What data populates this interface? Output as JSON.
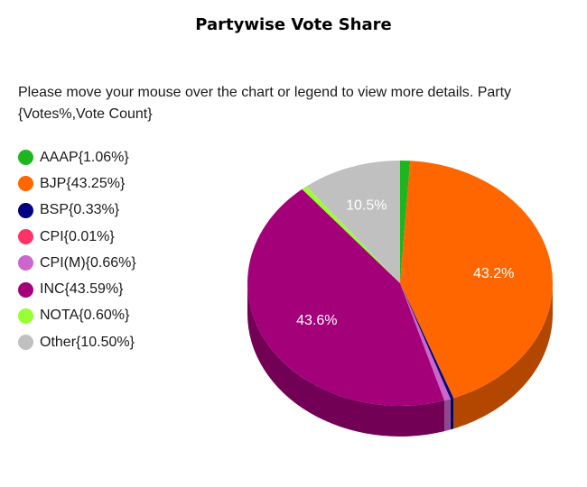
{
  "title": "Partywise Vote Share",
  "instructions": "Please move your mouse over the chart or legend to view more details. Party {Votes%,Vote Count}",
  "chart_data": {
    "type": "pie",
    "title": "Partywise Vote Share",
    "legend_position": "left",
    "slices": [
      {
        "name": "AAAP",
        "value": 1.06,
        "color": "#1fb51f",
        "legend": "AAAP{1.06%}",
        "label": ""
      },
      {
        "name": "BJP",
        "value": 43.25,
        "color": "#ff6600",
        "legend": "BJP{43.25%}",
        "label": "43.2%"
      },
      {
        "name": "BSP",
        "value": 0.33,
        "color": "#000080",
        "legend": "BSP{0.33%}",
        "label": ""
      },
      {
        "name": "CPI",
        "value": 0.01,
        "color": "#ff3366",
        "legend": "CPI{0.01%}",
        "label": ""
      },
      {
        "name": "CPI(M)",
        "value": 0.66,
        "color": "#cc66cc",
        "legend": "CPI(M){0.66%}",
        "label": ""
      },
      {
        "name": "INC",
        "value": 43.59,
        "color": "#a3007a",
        "legend": "INC{43.59%}",
        "label": "43.6%"
      },
      {
        "name": "NOTA",
        "value": 0.6,
        "color": "#99ff33",
        "legend": "NOTA{0.60%}",
        "label": ""
      },
      {
        "name": "Other",
        "value": 10.5,
        "color": "#c0c0c0",
        "legend": "Other{10.50%}",
        "label": "10.5%"
      }
    ]
  }
}
